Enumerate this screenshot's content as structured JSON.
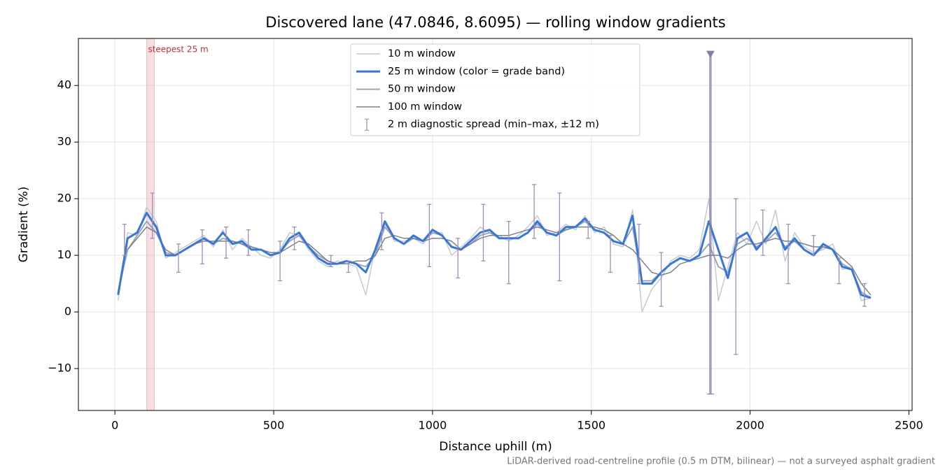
{
  "chart_data": {
    "type": "line",
    "title": "Discovered lane (47.0846, 8.6095) — rolling window gradients",
    "xlabel": "Distance uphill (m)",
    "ylabel": "Gradient (%)",
    "footnote": "LiDAR-derived road-centreline profile (0.5 m DTM, bilinear) — not a surveyed asphalt gradient",
    "xlim": [
      -115,
      2510
    ],
    "ylim": [
      -17.4,
      48.3
    ],
    "xticks": [
      0,
      500,
      1000,
      1500,
      2000,
      2500
    ],
    "yticks": [
      {
        "value": -10,
        "label": "−10"
      },
      0,
      10,
      20,
      30,
      40
    ],
    "grid": true,
    "legend": "upper center",
    "x": [
      10,
      40,
      70,
      100,
      130,
      160,
      190,
      220,
      250,
      280,
      310,
      340,
      370,
      400,
      430,
      460,
      490,
      520,
      550,
      580,
      610,
      640,
      670,
      700,
      730,
      760,
      790,
      820,
      850,
      880,
      910,
      940,
      970,
      1000,
      1030,
      1060,
      1090,
      1120,
      1150,
      1180,
      1210,
      1240,
      1270,
      1300,
      1330,
      1360,
      1390,
      1420,
      1450,
      1480,
      1510,
      1540,
      1570,
      1600,
      1630,
      1660,
      1690,
      1720,
      1750,
      1780,
      1810,
      1840,
      1870,
      1900,
      1930,
      1960,
      1990,
      2020,
      2050,
      2080,
      2110,
      2140,
      2170,
      2200,
      2230,
      2260,
      2290,
      2320,
      2350,
      2380
    ],
    "series": [
      {
        "name": "10 m window",
        "color": "#c3cad2",
        "width": 1.5,
        "values": [
          2,
          14,
          13.5,
          18.5,
          16,
          9.5,
          10.5,
          11.5,
          12.5,
          13.5,
          11.5,
          14.5,
          11,
          13,
          11.5,
          10,
          9.5,
          11,
          14,
          13.5,
          11,
          9,
          8,
          9,
          8.5,
          8,
          3,
          11.5,
          15.5,
          12.5,
          12.5,
          13,
          12,
          14,
          14,
          10,
          11.5,
          13,
          15,
          14,
          13.5,
          12.5,
          13.5,
          15,
          17,
          13.5,
          14,
          15.5,
          14.5,
          17,
          14,
          15,
          12,
          11.5,
          18,
          0,
          4,
          6,
          9,
          10,
          9.5,
          11,
          20,
          2,
          8,
          14,
          12,
          16,
          12,
          18,
          9,
          14,
          11.5,
          10.5,
          11,
          12,
          7.5,
          8,
          2,
          2.5
        ]
      },
      {
        "name": "25 m window (color = grade band)",
        "color": "#3a76d6",
        "width": 3,
        "values": [
          3,
          13,
          14,
          17.5,
          15,
          10,
          10,
          11,
          12,
          13,
          12,
          14,
          12,
          12.5,
          11,
          11,
          10,
          10.5,
          13,
          14,
          11.5,
          9.5,
          8.5,
          8.5,
          9,
          8.5,
          7,
          11,
          16,
          13,
          12,
          13.5,
          12.5,
          14.5,
          13.5,
          11.5,
          11,
          12.5,
          14,
          14.5,
          13,
          13,
          13,
          14,
          16,
          14,
          13.5,
          15,
          15,
          16.5,
          14.5,
          14,
          12.5,
          12,
          17,
          5,
          5,
          7,
          8.5,
          9.5,
          9,
          10,
          16,
          11,
          6,
          13,
          14,
          11,
          13,
          15,
          11,
          13,
          11,
          10,
          12,
          11,
          8,
          7.5,
          3,
          2.5
        ]
      },
      {
        "name": "50 m window",
        "color": "#9aa7b6",
        "width": 2,
        "values": [
          3.5,
          11,
          13.5,
          16,
          14,
          10.5,
          10,
          11,
          12,
          13,
          12,
          13,
          12.5,
          12,
          11,
          11,
          10,
          10.5,
          12.5,
          13.5,
          11.5,
          10,
          9,
          8.5,
          9,
          8.5,
          8,
          10,
          15,
          13,
          12,
          13,
          12.5,
          14,
          13.5,
          11.5,
          11,
          12,
          13.5,
          14,
          13,
          13,
          13,
          14,
          15.5,
          14,
          13.5,
          14.5,
          15,
          16,
          14.5,
          14,
          12.5,
          12,
          15,
          5.5,
          5.5,
          7,
          8.5,
          9.5,
          9,
          10,
          12,
          8,
          7,
          12,
          13,
          11.5,
          12.5,
          14,
          11.5,
          12.5,
          11,
          10,
          11.5,
          11,
          8.5,
          7.5,
          3.5,
          2.5
        ]
      },
      {
        "name": "100 m window",
        "color": "#7b828c",
        "width": 1.5,
        "values": [
          null,
          11,
          13,
          15,
          14,
          11,
          10,
          11,
          12,
          12.5,
          12.5,
          12.5,
          12.5,
          12,
          11.5,
          11,
          10.5,
          10.5,
          11.5,
          12.5,
          12,
          10.5,
          9,
          8.5,
          8.5,
          9,
          9,
          10,
          13,
          13.5,
          13,
          13,
          12.5,
          13,
          13,
          12.5,
          11,
          12,
          13,
          13.5,
          13.5,
          13.5,
          14,
          14.5,
          15,
          14.5,
          14,
          14.5,
          15,
          15,
          15,
          14.5,
          13.5,
          12,
          11,
          9,
          7,
          6.5,
          7,
          8.5,
          9,
          9.5,
          10,
          10,
          9.5,
          11,
          12,
          12,
          12.5,
          13,
          12.5,
          12.5,
          12,
          11.5,
          11.5,
          11,
          9.5,
          8,
          5,
          3
        ]
      }
    ],
    "errorbars": {
      "name": "2 m diagnostic spread (min–max, ±12 m)",
      "color": "#9b8fbb",
      "x": [
        30,
        118,
        200,
        275,
        350,
        420,
        520,
        565,
        680,
        735,
        840,
        990,
        1080,
        1160,
        1240,
        1320,
        1400,
        1490,
        1560,
        1650,
        1720,
        1955,
        2040,
        2120,
        2200,
        2280,
        2360
      ],
      "low": [
        10,
        13,
        7,
        8.5,
        9.5,
        10,
        5.5,
        11,
        8,
        7,
        11,
        8,
        6,
        9,
        5,
        13,
        5.5,
        13,
        7,
        5,
        1,
        -7.5,
        10,
        5,
        10,
        5,
        1
      ],
      "high": [
        15.5,
        21,
        12,
        14.5,
        15,
        14.5,
        12.5,
        15,
        10,
        9,
        17.5,
        19,
        13,
        19,
        16,
        22.5,
        21,
        16,
        13.5,
        15.5,
        10.5,
        20,
        18,
        15.5,
        13.5,
        9.5,
        5
      ]
    },
    "peak_marker": {
      "x": 1875,
      "low": -14.5,
      "high": 45.5,
      "color": "#8b7bab"
    },
    "highlight": {
      "x": [
        100,
        124
      ],
      "label": "steepest 25 m",
      "color": "#e8a0a8"
    }
  }
}
